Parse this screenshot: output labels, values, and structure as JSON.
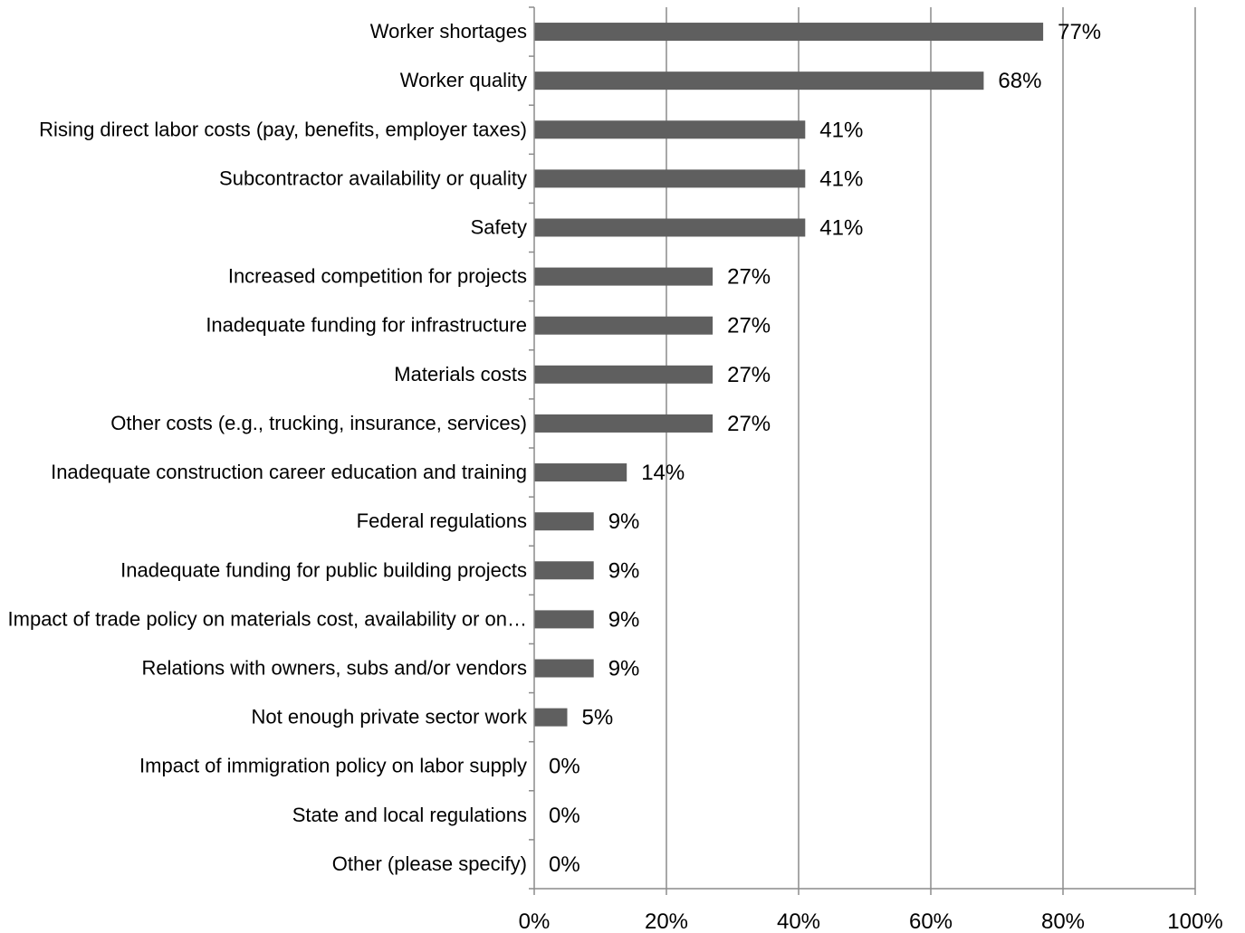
{
  "chart_data": {
    "type": "bar",
    "orientation": "horizontal",
    "title": "",
    "xlabel": "",
    "ylabel": "",
    "xlim": [
      0,
      100
    ],
    "x_ticks": [
      "0%",
      "20%",
      "40%",
      "60%",
      "80%",
      "100%"
    ],
    "grid": "vertical",
    "bar_color": "#5f5f5f",
    "categories": [
      "Worker shortages",
      "Worker quality",
      "Rising direct labor costs (pay, benefits, employer taxes)",
      "Subcontractor availability or quality",
      "Safety",
      "Increased competition for projects",
      "Inadequate funding for infrastructure",
      "Materials costs",
      "Other costs (e.g., trucking, insurance, services)",
      "Inadequate construction career education and training",
      "Federal regulations",
      "Inadequate funding for public building projects",
      "Impact of trade policy on materials cost, availability or on…",
      "Relations with owners, subs and/or vendors",
      "Not enough private sector work",
      "Impact of immigration policy on labor supply",
      "State and local regulations",
      "Other (please specify)"
    ],
    "values": [
      77,
      68,
      41,
      41,
      41,
      27,
      27,
      27,
      27,
      14,
      9,
      9,
      9,
      9,
      5,
      0,
      0,
      0
    ],
    "value_labels": [
      "77%",
      "68%",
      "41%",
      "41%",
      "41%",
      "27%",
      "27%",
      "27%",
      "27%",
      "14%",
      "9%",
      "9%",
      "9%",
      "9%",
      "5%",
      "0%",
      "0%",
      "0%"
    ]
  }
}
